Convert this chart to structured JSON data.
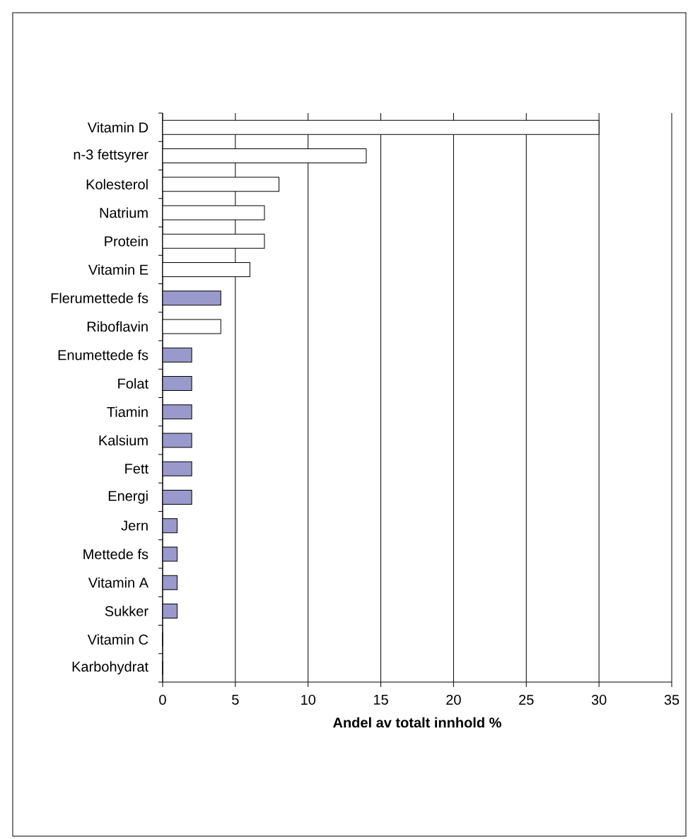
{
  "chart_data": {
    "type": "bar",
    "orientation": "horizontal",
    "categories": [
      "Vitamin D",
      "n-3 fettsyrer",
      "Kolesterol",
      "Natrium",
      "Protein",
      "Vitamin E",
      "Flerumettede fs",
      "Riboflavin",
      "Enumettede fs",
      "Folat",
      "Tiamin",
      "Kalsium",
      "Fett",
      "Energi",
      "Jern",
      "Mettede fs",
      "Vitamin A",
      "Sukker",
      "Vitamin C",
      "Karbohydrat"
    ],
    "values": [
      30,
      14,
      8,
      7,
      7,
      6,
      4,
      4,
      2,
      2,
      2,
      2,
      2,
      2,
      1,
      1,
      1,
      1,
      0,
      0
    ],
    "colors": [
      "#ffffff",
      "#ffffff",
      "#ffffff",
      "#ffffff",
      "#ffffff",
      "#ffffff",
      "#9999cc",
      "#ffffff",
      "#9999cc",
      "#9999cc",
      "#9999cc",
      "#9999cc",
      "#9999cc",
      "#9999cc",
      "#9999cc",
      "#9999cc",
      "#9999cc",
      "#9999cc",
      "#9999cc",
      "#9999cc"
    ],
    "xlabel": "Andel av totalt innhold %",
    "xlim": [
      0,
      35
    ],
    "xticks": [
      0,
      5,
      10,
      15,
      20,
      25,
      30,
      35
    ],
    "grid": "x"
  }
}
